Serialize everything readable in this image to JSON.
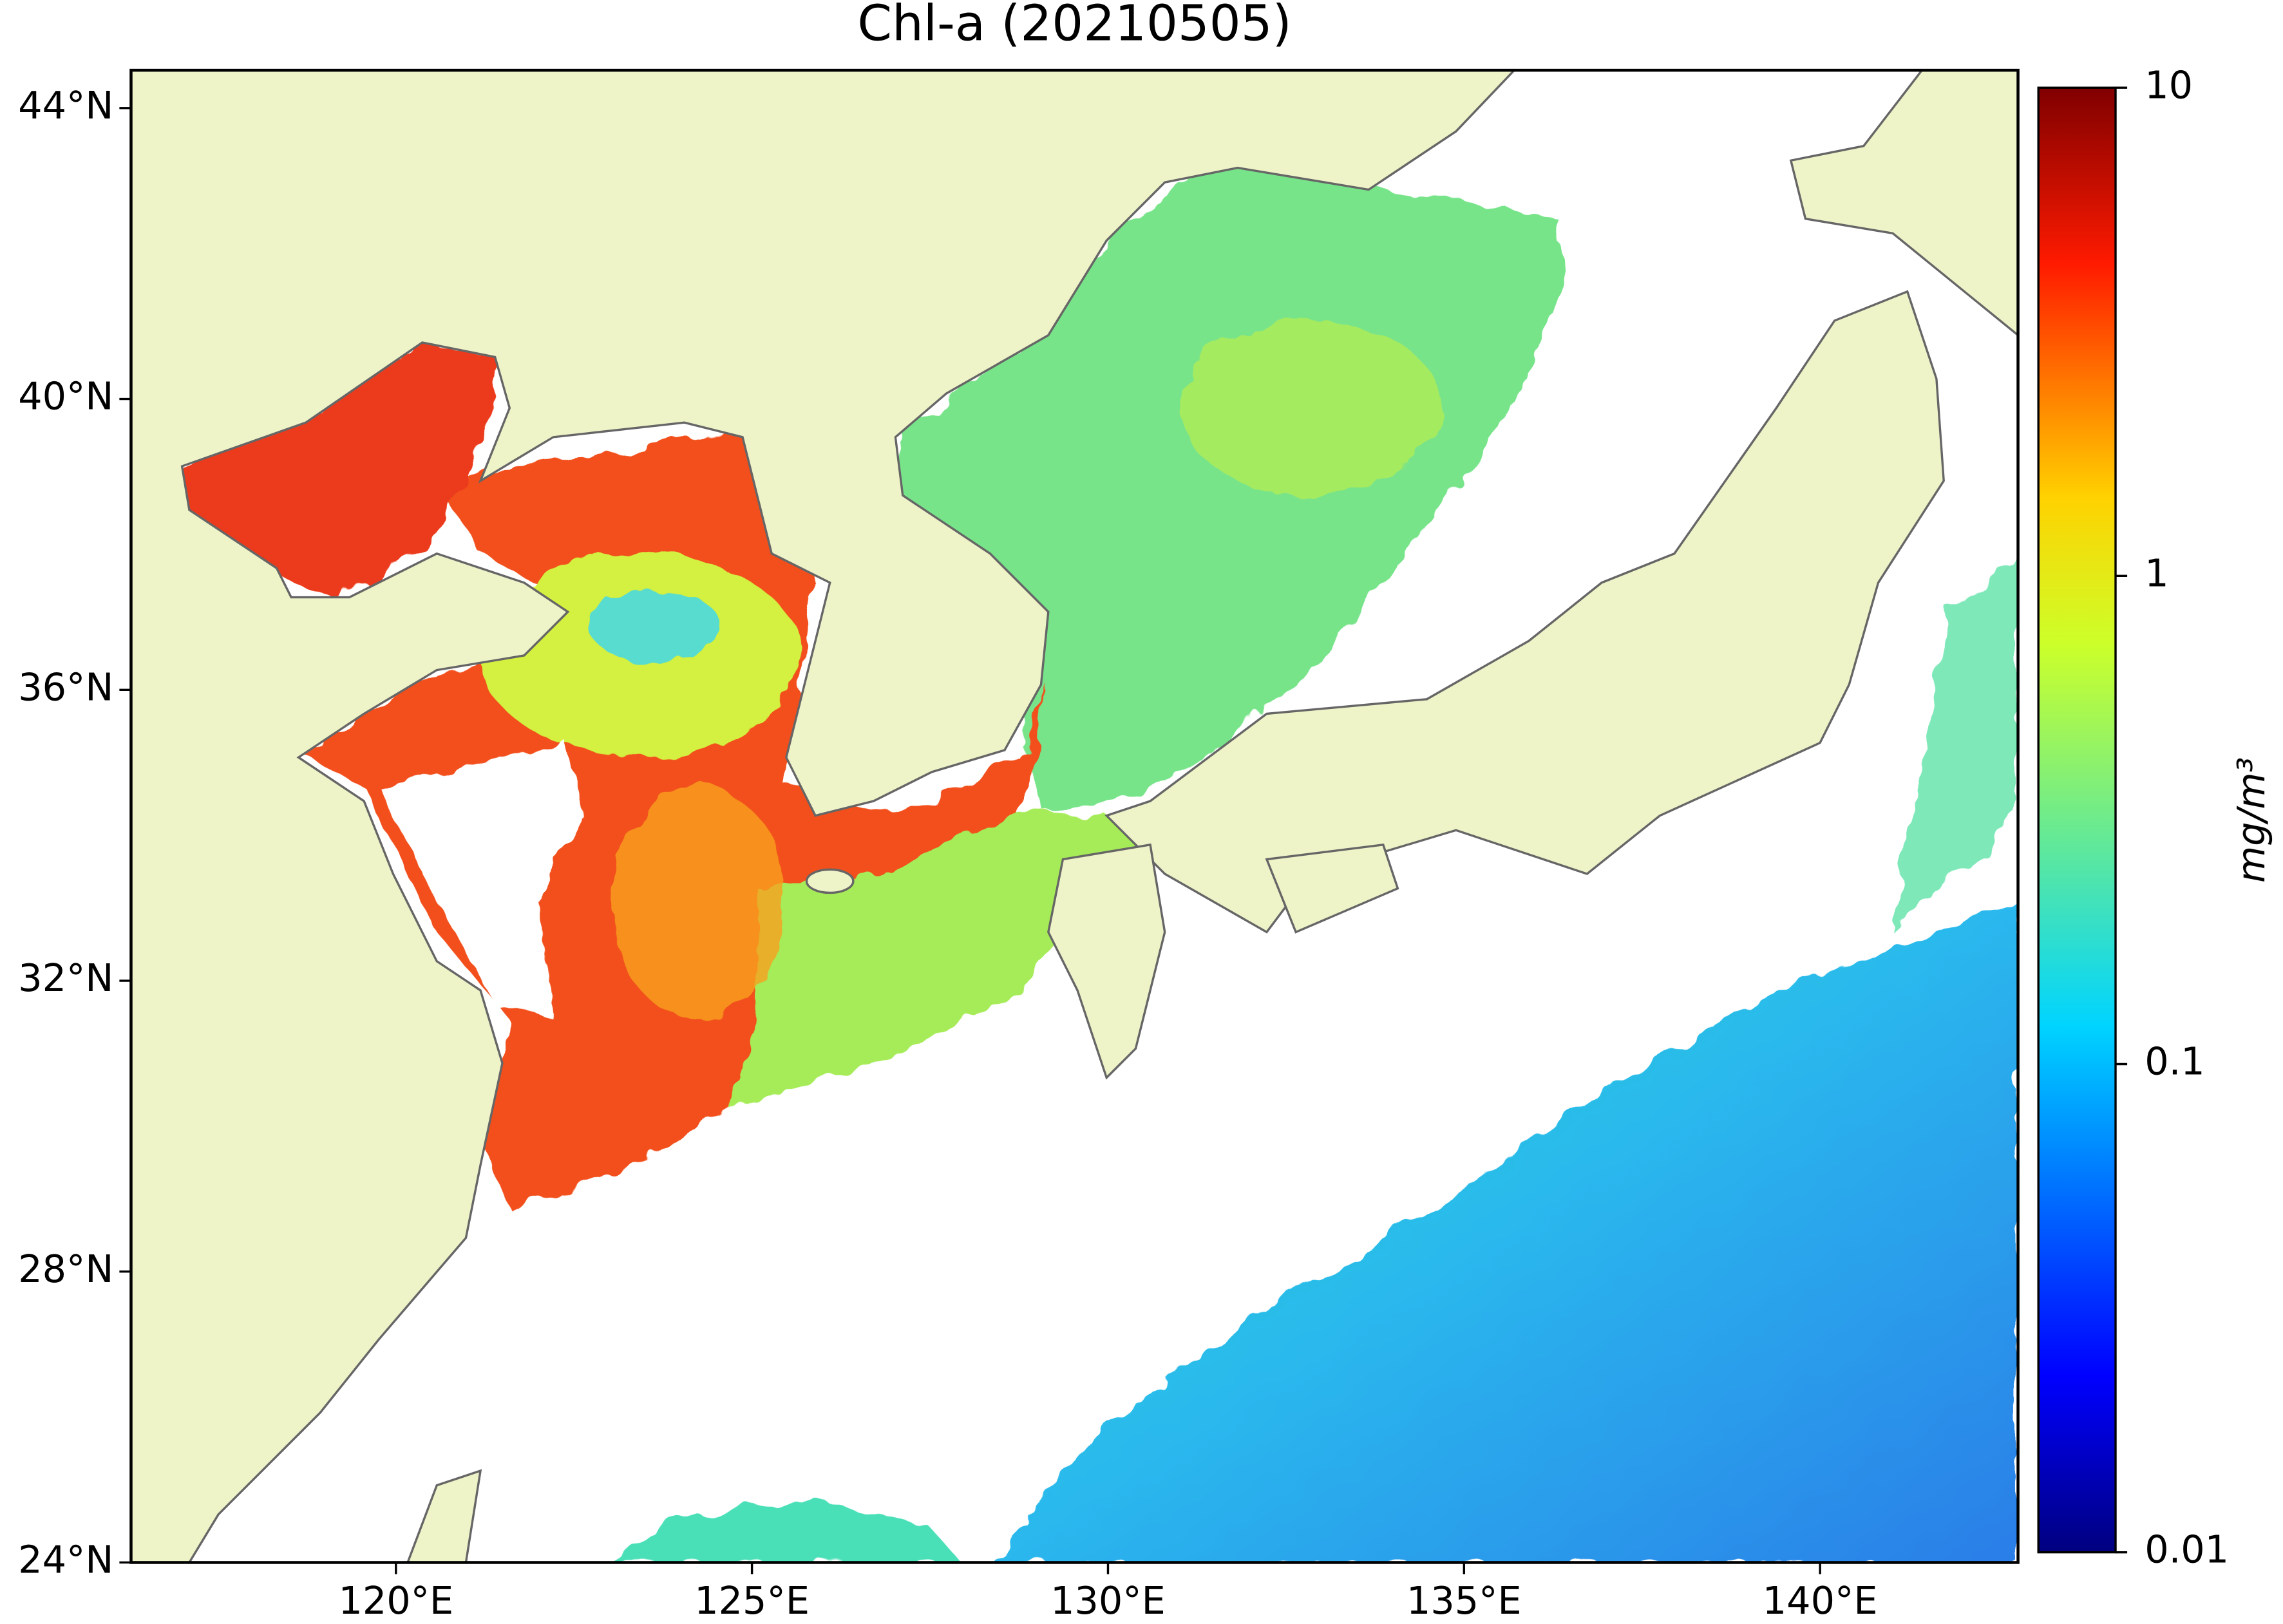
{
  "title": "Chl-a (20210505)",
  "map": {
    "xlim": [
      116.28,
      142.78
    ],
    "ylim": [
      24,
      44.52
    ],
    "xticks": [
      {
        "value": 120,
        "label": "120°E"
      },
      {
        "value": 125,
        "label": "125°E"
      },
      {
        "value": 130,
        "label": "130°E"
      },
      {
        "value": 135,
        "label": "135°E"
      },
      {
        "value": 140,
        "label": "140°E"
      }
    ],
    "yticks": [
      {
        "value": 24,
        "label": "24°N"
      },
      {
        "value": 28,
        "label": "28°N"
      },
      {
        "value": 32,
        "label": "32°N"
      },
      {
        "value": 36,
        "label": "36°N"
      },
      {
        "value": 40,
        "label": "40°N"
      },
      {
        "value": 44,
        "label": "44°N"
      }
    ]
  },
  "colorbar": {
    "label": "mg/m³",
    "scale": "log",
    "lim": [
      0.01,
      10
    ],
    "ticks": [
      0.01,
      0.1,
      1,
      10
    ]
  }
}
